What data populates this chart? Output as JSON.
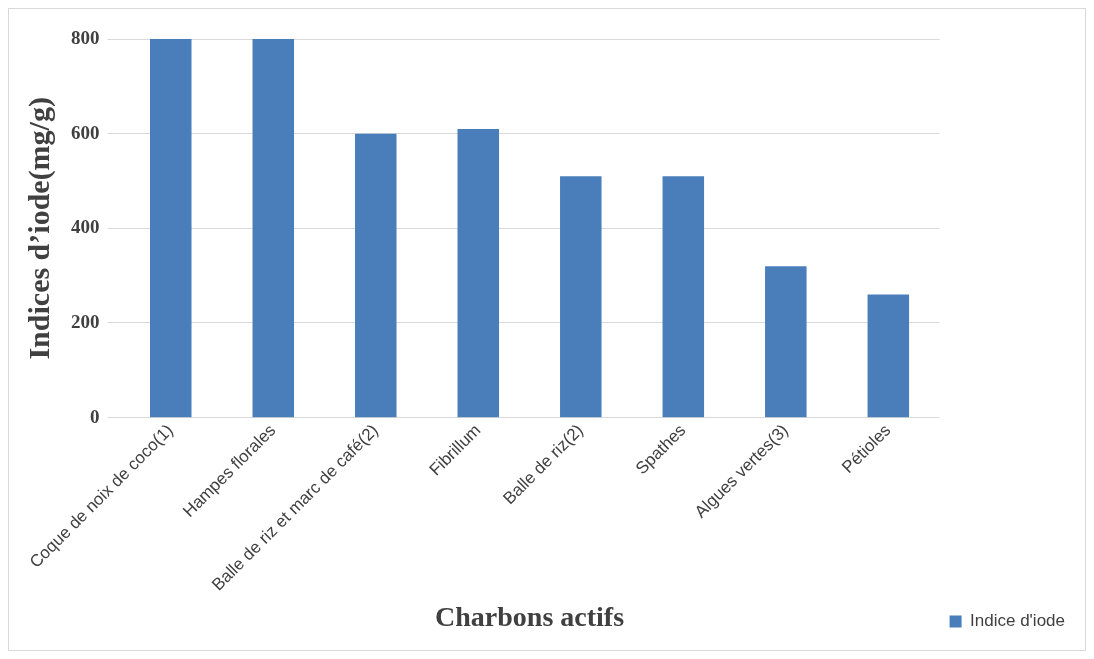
{
  "chart_data": {
    "type": "bar",
    "xlabel": "Charbons actifs",
    "ylabel": "Indices d’iode(mg/g)",
    "categories": [
      "Coque de noix de coco(1)",
      "Hampes florales",
      "Balle de riz et marc de café(2)",
      "Fibrillum",
      "Balle de riz(2)",
      "Spathes",
      "Algues vertes(3)",
      "Pétioles"
    ],
    "series": [
      {
        "name": "Indice d'iode",
        "color": "#4a7ebb",
        "values": [
          800,
          800,
          600,
          610,
          510,
          510,
          320,
          260
        ]
      }
    ],
    "ylim": [
      0,
      800
    ],
    "yticks": [
      0,
      200,
      400,
      600,
      800
    ],
    "grid": "y",
    "legend": "bottom right"
  }
}
